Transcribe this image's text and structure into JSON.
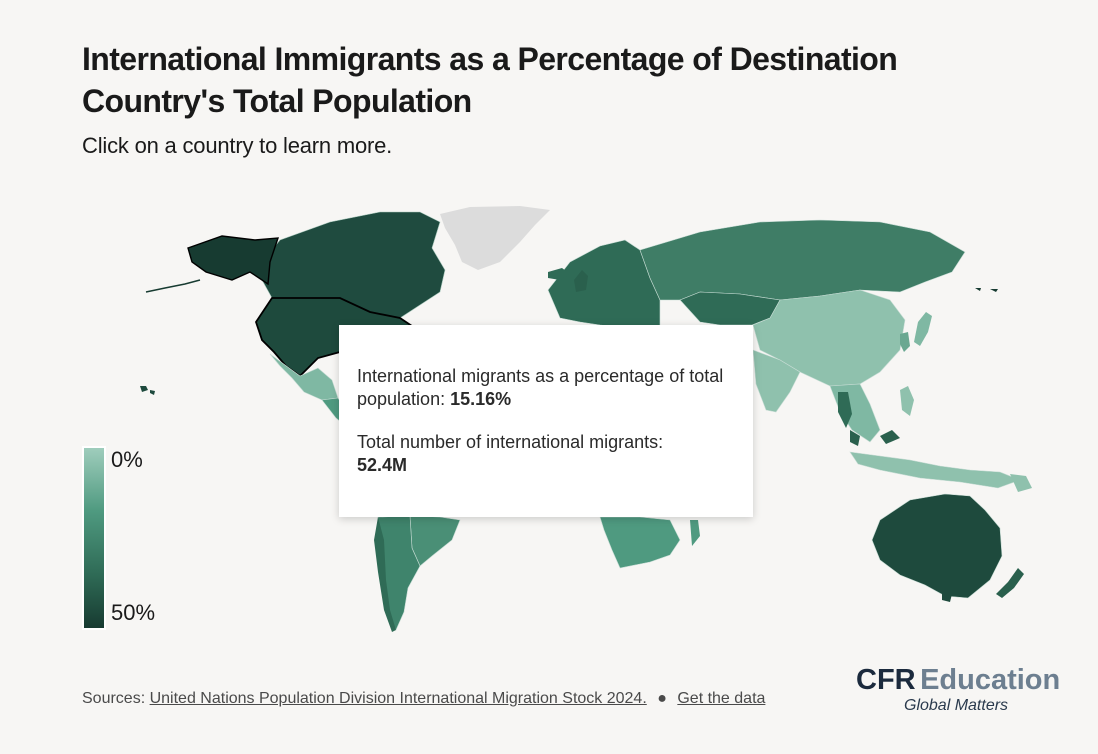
{
  "title": "International Immigrants as a Percentage of Destination Country's Total Population",
  "subtitle": "Click on a country to learn more.",
  "legend": {
    "min_label": "0%",
    "max_label": "50%",
    "color_low": "#9fcdbc",
    "color_high": "#173b31"
  },
  "tooltip": {
    "pct_label": "International migrants as a percentage of total population: ",
    "pct_value": "15.16%",
    "total_label": "Total number of international migrants:",
    "total_value": "52.4M"
  },
  "selected_country": "United States",
  "footer": {
    "sources_label": "Sources:",
    "source_link": "United Nations Population Division International Migration Stock 2024.",
    "separator": "●",
    "data_link": "Get the data"
  },
  "logo": {
    "cfr": "CFR",
    "education": "Education",
    "tagline": "Global Matters"
  },
  "colors": {
    "background": "#f7f6f4",
    "no_data": "#dcdcdc",
    "map_dark": "#1e4a3d",
    "map_mid": "#3f7d66",
    "map_light": "#8fc1ad"
  }
}
